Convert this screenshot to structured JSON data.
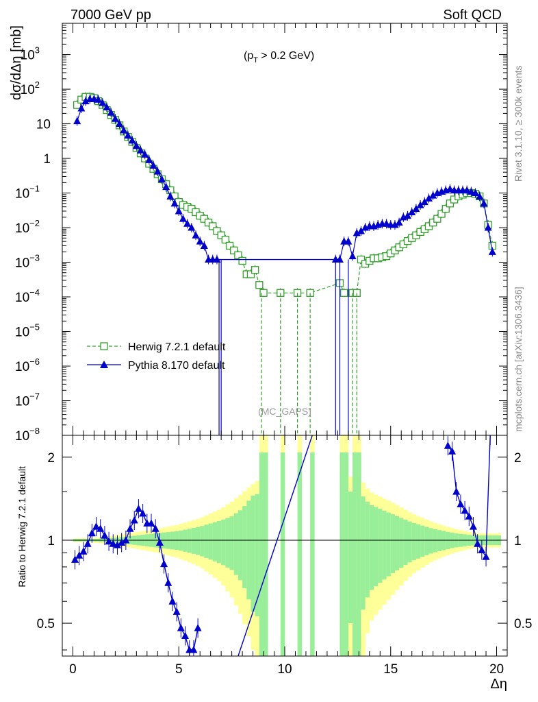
{
  "header": {
    "left": "7000 GeV pp",
    "right": "Soft QCD"
  },
  "side_text": {
    "rivet": "Rivet 3.1.10, ≥ 300k events",
    "mcplots": "mcplots.cern.ch [arXiv:1306.3436]"
  },
  "annotation": {
    "cut_prefix": "(p",
    "cut_sub": "T",
    "cut_suffix": " > 0.2 GeV)",
    "analysis": "(MC_GAPS)"
  },
  "colors": {
    "herwig": "#33a02c",
    "pythia": "#0000cc",
    "band_inner": "#99ee99",
    "band_outer": "#ffff99"
  },
  "chart_data": [
    {
      "type": "scatter",
      "title": "",
      "ylabel": "dσ/dΔη [mb]",
      "yscale": "log",
      "xlim": [
        -0.5,
        20.5
      ],
      "ylim": [
        1e-08,
        8000
      ],
      "yticks": [
        {
          "v": 1e-08,
          "base": "10",
          "exp": "−8"
        },
        {
          "v": 1e-07,
          "base": "10",
          "exp": "−7"
        },
        {
          "v": 1e-06,
          "base": "10",
          "exp": "−6"
        },
        {
          "v": 1e-05,
          "base": "10",
          "exp": "−5"
        },
        {
          "v": 0.0001,
          "base": "10",
          "exp": "−4"
        },
        {
          "v": 0.001,
          "base": "10",
          "exp": "−3"
        },
        {
          "v": 0.01,
          "base": "10",
          "exp": "−2"
        },
        {
          "v": 0.1,
          "base": "10",
          "exp": "−1"
        },
        {
          "v": 1,
          "base": "1",
          "exp": ""
        },
        {
          "v": 10,
          "base": "10",
          "exp": ""
        },
        {
          "v": 100,
          "base": "10",
          "exp": "2"
        },
        {
          "v": 1000,
          "base": "10",
          "exp": "3"
        }
      ],
      "legend_position": "lower-left",
      "series": [
        {
          "name": "Herwig 7.2.1 default",
          "marker": "open-square",
          "line": "dashed",
          "points": [
            [
              0.2,
              35
            ],
            [
              0.4,
              50
            ],
            [
              0.6,
              60
            ],
            [
              0.8,
              60
            ],
            [
              1.0,
              55
            ],
            [
              1.2,
              45
            ],
            [
              1.4,
              35
            ],
            [
              1.6,
              25
            ],
            [
              1.8,
              18
            ],
            [
              2.0,
              13
            ],
            [
              2.2,
              9
            ],
            [
              2.4,
              6
            ],
            [
              2.6,
              4.2
            ],
            [
              2.8,
              3.0
            ],
            [
              3.0,
              2.0
            ],
            [
              3.2,
              1.4
            ],
            [
              3.4,
              1.0
            ],
            [
              3.6,
              0.7
            ],
            [
              3.8,
              0.5
            ],
            [
              4.0,
              0.35
            ],
            [
              4.2,
              0.25
            ],
            [
              4.4,
              0.18
            ],
            [
              4.6,
              0.12
            ],
            [
              4.8,
              0.08
            ],
            [
              5.0,
              0.055
            ],
            [
              5.2,
              0.045
            ],
            [
              5.4,
              0.04
            ],
            [
              5.6,
              0.035
            ],
            [
              5.8,
              0.028
            ],
            [
              6.0,
              0.022
            ],
            [
              6.2,
              0.018
            ],
            [
              6.4,
              0.014
            ],
            [
              6.6,
              0.011
            ],
            [
              6.8,
              0.008
            ],
            [
              7.0,
              0.006
            ],
            [
              7.2,
              0.0045
            ],
            [
              7.4,
              0.003
            ],
            [
              7.6,
              0.0022
            ],
            [
              7.8,
              0.0016
            ],
            [
              8.0,
              0.0011
            ],
            [
              8.2,
              0.00045
            ],
            [
              8.4,
              0.00045
            ],
            [
              8.6,
              0.0006
            ],
            [
              8.8,
              0.00022
            ],
            [
              9.0,
              0.00013
            ],
            [
              9.8,
              0.00013
            ],
            [
              10.6,
              0.00013
            ],
            [
              11.2,
              0.00013
            ],
            [
              12.6,
              0.00025
            ],
            [
              12.8,
              0.00013
            ],
            [
              13.2,
              0.00013
            ],
            [
              13.4,
              0.00013
            ],
            [
              13.6,
              0.0012
            ],
            [
              13.8,
              0.0009
            ],
            [
              14.0,
              0.0011
            ],
            [
              14.2,
              0.0013
            ],
            [
              14.4,
              0.0013
            ],
            [
              14.6,
              0.0014
            ],
            [
              14.8,
              0.0015
            ],
            [
              15.0,
              0.0018
            ],
            [
              15.2,
              0.0022
            ],
            [
              15.4,
              0.0027
            ],
            [
              15.6,
              0.0033
            ],
            [
              15.8,
              0.0041
            ],
            [
              16.0,
              0.005
            ],
            [
              16.2,
              0.006
            ],
            [
              16.4,
              0.0075
            ],
            [
              16.6,
              0.009
            ],
            [
              16.8,
              0.011
            ],
            [
              17.0,
              0.014
            ],
            [
              17.2,
              0.018
            ],
            [
              17.4,
              0.025
            ],
            [
              17.6,
              0.035
            ],
            [
              17.8,
              0.05
            ],
            [
              18.0,
              0.065
            ],
            [
              18.2,
              0.08
            ],
            [
              18.4,
              0.09
            ],
            [
              18.6,
              0.1
            ],
            [
              18.8,
              0.1
            ],
            [
              19.0,
              0.095
            ],
            [
              19.2,
              0.08
            ],
            [
              19.4,
              0.05
            ],
            [
              19.6,
              0.012
            ],
            [
              19.8,
              0.003
            ]
          ]
        },
        {
          "name": "Pythia 8.170 default",
          "marker": "filled-triangle",
          "line": "solid",
          "points": [
            [
              0.2,
              12
            ],
            [
              0.4,
              28
            ],
            [
              0.6,
              45
            ],
            [
              0.8,
              52
            ],
            [
              1.0,
              52
            ],
            [
              1.2,
              50
            ],
            [
              1.4,
              40
            ],
            [
              1.6,
              30
            ],
            [
              1.8,
              21
            ],
            [
              2.0,
              14
            ],
            [
              2.2,
              10
            ],
            [
              2.4,
              6.5
            ],
            [
              2.6,
              4.6
            ],
            [
              2.8,
              3.3
            ],
            [
              3.0,
              2.3
            ],
            [
              3.2,
              1.7
            ],
            [
              3.4,
              1.3
            ],
            [
              3.6,
              0.9
            ],
            [
              3.8,
              0.62
            ],
            [
              4.0,
              0.42
            ],
            [
              4.2,
              0.25
            ],
            [
              4.4,
              0.15
            ],
            [
              4.6,
              0.08
            ],
            [
              4.8,
              0.05
            ],
            [
              5.0,
              0.03
            ],
            [
              5.2,
              0.018
            ],
            [
              5.4,
              0.013
            ],
            [
              5.6,
              0.01
            ],
            [
              5.8,
              0.006
            ],
            [
              6.0,
              0.004
            ],
            [
              6.2,
              0.003
            ],
            [
              6.4,
              0.0012
            ],
            [
              6.6,
              0.0012
            ],
            [
              6.8,
              0.0012
            ],
            [
              12.4,
              0.0012
            ],
            [
              12.6,
              0.0012
            ],
            [
              12.8,
              0.004
            ],
            [
              13.0,
              0.004
            ],
            [
              13.2,
              0.0015
            ],
            [
              13.4,
              0.007
            ],
            [
              13.6,
              0.008
            ],
            [
              13.8,
              0.01
            ],
            [
              14.0,
              0.011
            ],
            [
              14.2,
              0.011
            ],
            [
              14.4,
              0.012
            ],
            [
              14.6,
              0.013
            ],
            [
              14.8,
              0.013
            ],
            [
              15.0,
              0.012
            ],
            [
              15.2,
              0.012
            ],
            [
              15.4,
              0.014
            ],
            [
              15.6,
              0.02
            ],
            [
              15.8,
              0.022
            ],
            [
              16.0,
              0.028
            ],
            [
              16.2,
              0.035
            ],
            [
              16.4,
              0.045
            ],
            [
              16.6,
              0.055
            ],
            [
              16.8,
              0.07
            ],
            [
              17.0,
              0.085
            ],
            [
              17.2,
              0.1
            ],
            [
              17.4,
              0.11
            ],
            [
              17.6,
              0.12
            ],
            [
              17.8,
              0.13
            ],
            [
              18.0,
              0.12
            ],
            [
              18.2,
              0.12
            ],
            [
              18.4,
              0.12
            ],
            [
              18.6,
              0.12
            ],
            [
              18.8,
              0.11
            ],
            [
              19.0,
              0.1
            ],
            [
              19.2,
              0.08
            ],
            [
              19.4,
              0.05
            ],
            [
              19.6,
              0.01
            ],
            [
              19.8,
              0.002
            ]
          ]
        }
      ]
    },
    {
      "type": "line",
      "title": "",
      "xlabel": "Δη",
      "ylabel": "Ratio to Herwig 7.2.1 default",
      "xlim": [
        -0.5,
        20.5
      ],
      "ylim": [
        0.38,
        2.4
      ],
      "xticks": [
        0,
        5,
        10,
        15,
        20
      ],
      "yticks": [
        0.5,
        1,
        2
      ],
      "reference_line": 1,
      "series": [
        {
          "name": "Pythia 8.170 default",
          "points": [
            [
              0.1,
              0.85
            ],
            [
              0.3,
              0.88
            ],
            [
              0.5,
              0.91
            ],
            [
              0.7,
              0.97
            ],
            [
              0.9,
              1.06
            ],
            [
              1.1,
              1.12
            ],
            [
              1.3,
              1.1
            ],
            [
              1.5,
              1.04
            ],
            [
              1.7,
              0.99
            ],
            [
              1.9,
              0.97
            ],
            [
              2.1,
              0.96
            ],
            [
              2.3,
              0.98
            ],
            [
              2.5,
              1.0
            ],
            [
              2.7,
              1.1
            ],
            [
              2.9,
              1.18
            ],
            [
              3.1,
              1.3
            ],
            [
              3.3,
              1.25
            ],
            [
              3.5,
              1.15
            ],
            [
              3.7,
              1.15
            ],
            [
              3.9,
              1.1
            ],
            [
              4.1,
              0.98
            ],
            [
              4.3,
              0.82
            ],
            [
              4.5,
              0.7
            ],
            [
              4.7,
              0.6
            ],
            [
              4.9,
              0.55
            ],
            [
              5.1,
              0.48
            ],
            [
              5.3,
              0.45
            ],
            [
              5.5,
              0.4
            ],
            [
              5.7,
              0.4
            ],
            [
              5.9,
              0.48
            ]
          ]
        },
        {
          "name": "Pythia 8.170 default (high)",
          "points": [
            [
              17.7,
              2.2
            ],
            [
              17.9,
              2.1
            ],
            [
              18.1,
              1.5
            ],
            [
              18.3,
              1.35
            ],
            [
              18.5,
              1.28
            ],
            [
              18.7,
              1.22
            ],
            [
              18.9,
              1.12
            ],
            [
              19.1,
              0.97
            ],
            [
              19.3,
              0.92
            ],
            [
              19.5,
              0.87
            ],
            [
              19.7,
              2.4
            ]
          ]
        }
      ],
      "diagonal_line": [
        [
          7.8,
          0.38
        ],
        [
          11.3,
          2.4
        ]
      ],
      "band_inner_halfwidth": [
        [
          0,
          0.01
        ],
        [
          1,
          0.01
        ],
        [
          2,
          0.02
        ],
        [
          3,
          0.04
        ],
        [
          4,
          0.06
        ],
        [
          5,
          0.08
        ],
        [
          6,
          0.12
        ],
        [
          7,
          0.18
        ],
        [
          7.5,
          0.22
        ],
        [
          8,
          0.3
        ],
        [
          8.5,
          0.45
        ],
        [
          9,
          0.5
        ],
        [
          13.5,
          0.5
        ],
        [
          14,
          0.35
        ],
        [
          15,
          0.25
        ],
        [
          16,
          0.16
        ],
        [
          17,
          0.1
        ],
        [
          18,
          0.06
        ],
        [
          19,
          0.04
        ],
        [
          20,
          0.04
        ]
      ],
      "band_outer_halfwidth": [
        [
          0,
          0.015
        ],
        [
          1,
          0.02
        ],
        [
          2,
          0.04
        ],
        [
          3,
          0.07
        ],
        [
          4,
          0.1
        ],
        [
          5,
          0.14
        ],
        [
          6,
          0.2
        ],
        [
          7,
          0.3
        ],
        [
          7.5,
          0.38
        ],
        [
          8,
          0.48
        ],
        [
          8.5,
          0.6
        ],
        [
          9,
          0.7
        ],
        [
          13.5,
          0.7
        ],
        [
          14,
          0.5
        ],
        [
          15,
          0.38
        ],
        [
          16,
          0.25
        ],
        [
          17,
          0.16
        ],
        [
          18,
          0.1
        ],
        [
          19,
          0.06
        ],
        [
          20,
          0.06
        ]
      ],
      "bands_full_height": [
        [
          8.9,
          9.1
        ],
        [
          9.7,
          9.9
        ],
        [
          10.5,
          10.7
        ],
        [
          11.1,
          11.3
        ],
        [
          12.5,
          12.9
        ],
        [
          13.1,
          13.5
        ]
      ]
    }
  ]
}
